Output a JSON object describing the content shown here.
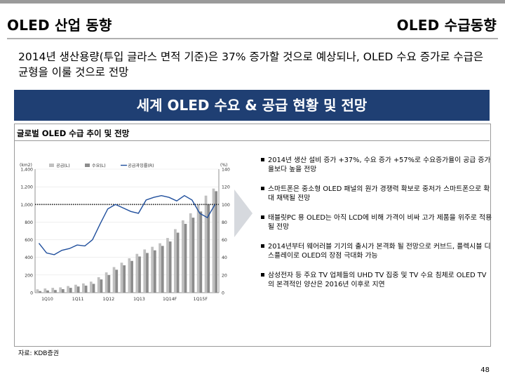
{
  "header": {
    "left_title": "OLED 산업 동향",
    "right_title": "OLED 수급동향"
  },
  "summary": "2014년 생산용량(투입 글라스 면적 기준)은 37% 증가할 것으로 예상되나, OLED 수요 증가로 수급은 균형을 이룰 것으로 전망",
  "banner": "세계 OLED 수요 & 공급 현황 및 전망",
  "panel_title": "글로벌 OLED 수급 추이 및 전망",
  "bullets": [
    "2014년 생산 설비 증가 +37%, 수요 증가 +57%로 수요증가율이 공급 증가율보다 높을 전망",
    "스마트폰은 중소형 OLED 패널의 원가 경쟁력 확보로 중저가 스마트폰으로 확대 채택될 전망",
    "태블릿PC 용 OLED는 아직 LCD에 비해 가격이 비싸 고가 제품을 위주로 적용될 전망",
    "2014년부터 웨어러블 기기의 출시가 본격화 될 전망으로 커브드, 플렉시블 디스플레이로 OLED의 장점 극대화 가능",
    "삼성전자 등 주요 TV 업체들의 UHD TV 집중 및 TV 수요 침체로 OLED TV의 본격적인 양산은 2016년 이후로 지연"
  ],
  "source": "자료: KDB증권",
  "page_number": "48",
  "colors": {
    "banner": "#1f3f73",
    "supply": "#c0c0c0",
    "demand": "#8c8c8c",
    "ratio_line": "#1f4e9c"
  },
  "chart_data": {
    "type": "bar",
    "left_unit": "(km2)",
    "right_unit": "(%)",
    "legend": [
      "공급(L)",
      "수요(L)",
      "공급과잉률(R)"
    ],
    "ylim_left": [
      0,
      1400
    ],
    "yticks_left": [
      0,
      200,
      400,
      600,
      800,
      1000,
      1200,
      1400
    ],
    "ylim_right": [
      0,
      140
    ],
    "yticks_right": [
      0,
      20,
      40,
      60,
      80,
      100,
      120,
      140
    ],
    "xtick_labels": [
      "1Q10",
      "1Q11",
      "1Q12",
      "1Q13",
      "1Q14F",
      "1Q15F"
    ],
    "reference_line": 100,
    "series": [
      {
        "name": "공급(L)",
        "axis": "left",
        "values": [
          38,
          48,
          55,
          60,
          75,
          90,
          105,
          125,
          175,
          230,
          290,
          340,
          390,
          440,
          490,
          520,
          560,
          620,
          720,
          820,
          900,
          1000,
          1100,
          1180
        ]
      },
      {
        "name": "수요(L)",
        "axis": "left",
        "values": [
          18,
          25,
          30,
          40,
          55,
          70,
          80,
          100,
          150,
          200,
          260,
          310,
          360,
          410,
          450,
          480,
          530,
          580,
          680,
          780,
          850,
          920,
          1000,
          1150
        ]
      },
      {
        "name": "공급과잉률(R)",
        "axis": "right",
        "type": "line",
        "values": [
          56,
          45,
          43,
          48,
          50,
          54,
          53,
          60,
          78,
          95,
          100,
          96,
          92,
          90,
          105,
          108,
          110,
          108,
          104,
          110,
          105,
          90,
          85,
          100
        ]
      }
    ]
  }
}
